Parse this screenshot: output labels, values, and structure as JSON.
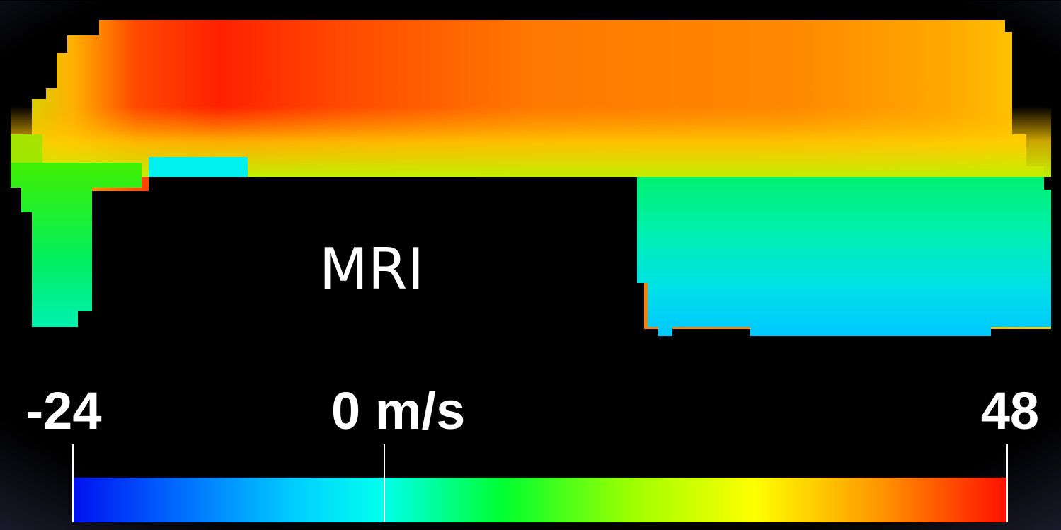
{
  "label": "MRI",
  "colorbar": {
    "lim": [
      -24,
      48
    ],
    "ticks": [
      -24,
      {
        "value": 0,
        "label": "0 m/s"
      },
      48
    ]
  }
}
